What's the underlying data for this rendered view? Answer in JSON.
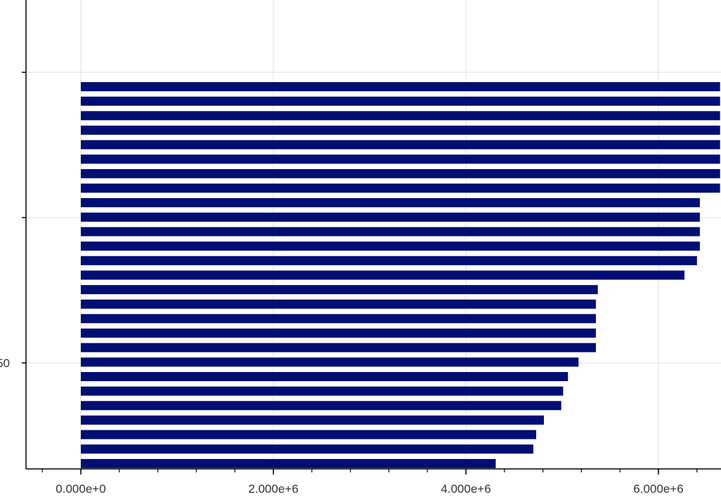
{
  "chart_data": {
    "type": "bar",
    "orientation": "horizontal",
    "grid": true,
    "bar_color": "#000d73",
    "axis_color": "#000000",
    "grid_color": "#e5e5e5",
    "x_domain": [
      -400000,
      6640000
    ],
    "x_ticks": [
      0,
      2000000,
      4000000,
      6000000
    ],
    "x_tick_labels": [
      "0.000e+0",
      "2.000e+6",
      "4.000e+6",
      "6.000e+6"
    ],
    "y_tick_labels": [
      "50"
    ],
    "values": [
      6640000,
      6640000,
      6640000,
      6640000,
      6640000,
      6640000,
      6640000,
      6640000,
      6430000,
      6430000,
      6430000,
      6430000,
      6400000,
      6270000,
      5370000,
      5350000,
      5350000,
      5350000,
      5350000,
      5170000,
      5060000,
      5010000,
      4990000,
      4810000,
      4730000,
      4700000,
      4310000
    ]
  }
}
